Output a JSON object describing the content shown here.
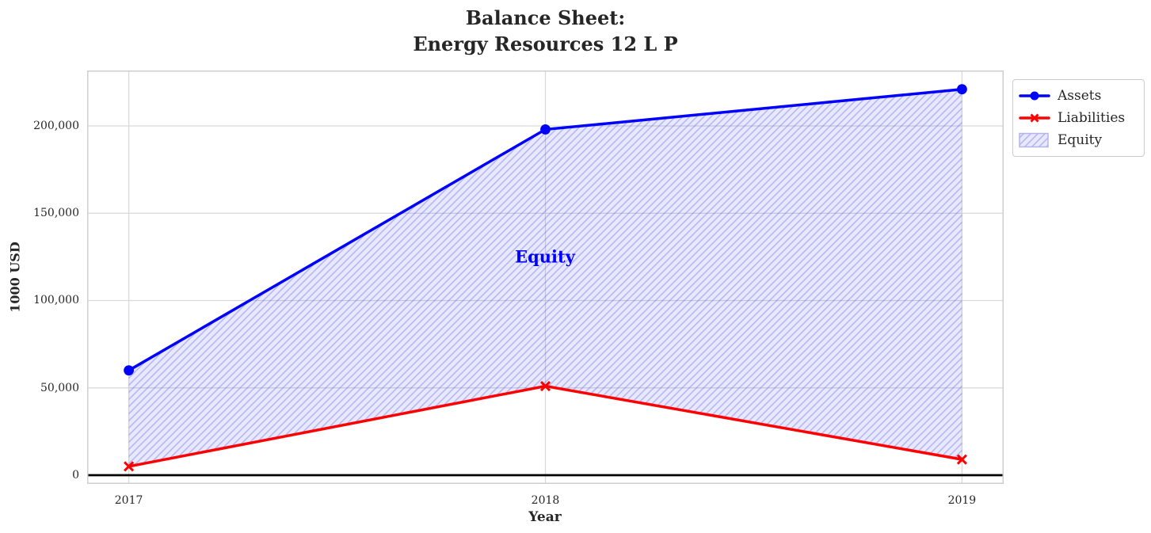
{
  "figure": {
    "title_line1": "Balance Sheet:",
    "title_line2": "Energy Resources 12 L P"
  },
  "chart_data": {
    "type": "line",
    "title": "Balance Sheet: Energy Resources 12 L P",
    "xlabel": "Year",
    "ylabel": "1000 USD",
    "x": [
      2017,
      2018,
      2019
    ],
    "x_ticks": [
      {
        "value": 2017,
        "label": "2017"
      },
      {
        "value": 2018,
        "label": "2018"
      },
      {
        "value": 2019,
        "label": "2019"
      }
    ],
    "y_ticks": [
      {
        "value": 0,
        "label": "0"
      },
      {
        "value": 50000,
        "label": "50,000"
      },
      {
        "value": 100000,
        "label": "100,000"
      },
      {
        "value": 150000,
        "label": "150,000"
      },
      {
        "value": 200000,
        "label": "200,000"
      }
    ],
    "xlim": [
      2016.9,
      2019.1
    ],
    "ylim": [
      -5000,
      231750
    ],
    "grid": true,
    "grid_color": "#d9d9d9",
    "spine_color": "#cfcfcf",
    "text_color": "#262626",
    "zero_line_color": "#000000",
    "series": [
      {
        "name": "Assets",
        "color": "#0000ff",
        "marker": "circle",
        "values": [
          60000,
          198000,
          221000
        ]
      },
      {
        "name": "Liabilities",
        "color": "#ff0000",
        "marker": "x",
        "values": [
          5000,
          51000,
          9000
        ]
      }
    ],
    "equity_area": {
      "name": "Equity",
      "between": [
        "Liabilities",
        "Assets"
      ],
      "fill_color": "rgba(0,0,255,0.09)",
      "hatch": "//",
      "hatch_color": "rgba(70,70,215,0.30)",
      "swatch_edge_color": "#b3b3ef",
      "annotation": {
        "text": "Equity",
        "color": "#0000ff",
        "x": 2018,
        "y": 125000
      }
    },
    "legend": {
      "position": "outside-top-right",
      "entries": [
        "Assets",
        "Liabilities",
        "Equity"
      ]
    }
  }
}
